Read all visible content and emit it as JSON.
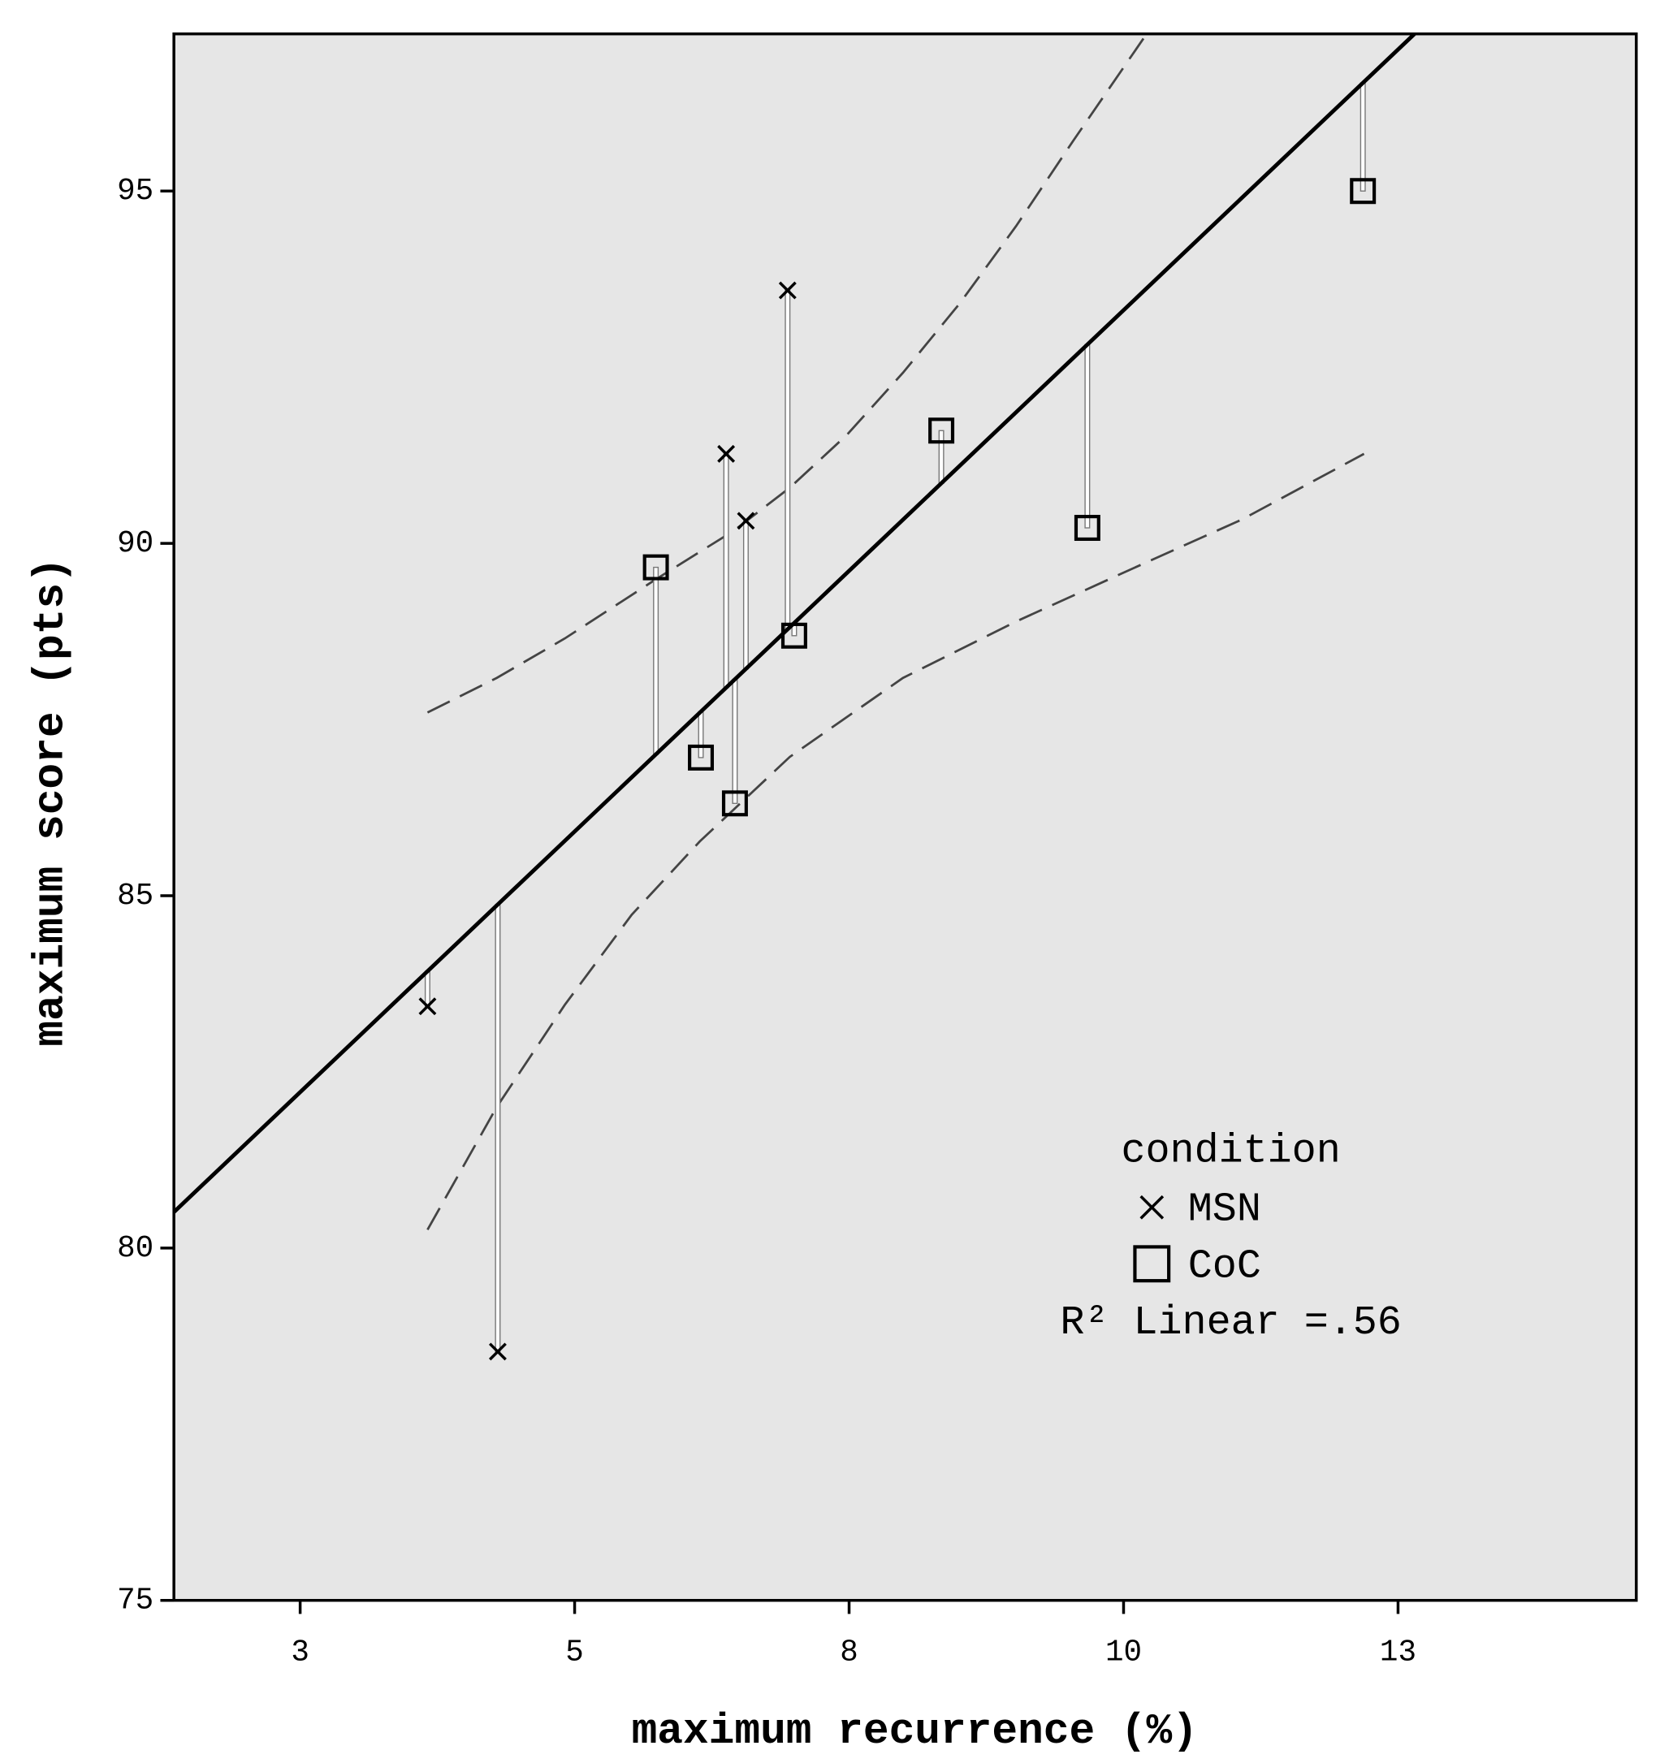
{
  "chart_data": {
    "type": "scatter",
    "x_label": "maximum recurrence (%)",
    "y_label": "maximum score (pts)",
    "xlim": [
      1.35,
      14.67
    ],
    "ylim": [
      75,
      97.23
    ],
    "xticks": [
      {
        "value": 2.5,
        "label": "3"
      },
      5,
      {
        "value": 7.5,
        "label": "8"
      },
      10,
      {
        "value": 12.5,
        "label": "13"
      }
    ],
    "yticks": [
      75,
      80,
      85,
      90,
      95
    ],
    "background": "#e6e6e6",
    "legend_title": "condition",
    "legend_position": "lower right",
    "series": [
      {
        "name": "MSN",
        "marker": "x",
        "color": "#000000",
        "x": [
          3.66,
          4.3,
          6.38,
          6.56,
          6.94
        ],
        "values": [
          83.43,
          78.53,
          91.27,
          90.32,
          93.59
        ]
      },
      {
        "name": "CoC",
        "marker": "square",
        "color": "#000000",
        "x": [
          5.74,
          6.15,
          6.46,
          7.0,
          8.34,
          9.67,
          12.18
        ],
        "values": [
          89.66,
          86.96,
          86.31,
          88.69,
          91.6,
          90.22,
          95.0
        ]
      }
    ],
    "fit": {
      "label": "R² Linear =.56",
      "x": [
        1.35,
        12.65
      ],
      "values": [
        80.51,
        97.23
      ]
    },
    "bands": [
      {
        "x": [
          3.66,
          4.29,
          4.91,
          5.74,
          6.45,
          6.96,
          7.48,
          7.99,
          8.51,
          9.02,
          9.54,
          10.21
        ],
        "values": [
          87.6,
          88.09,
          88.65,
          89.49,
          90.18,
          90.79,
          91.54,
          92.42,
          93.41,
          94.5,
          95.71,
          97.23
        ]
      },
      {
        "x": [
          3.66,
          4.29,
          4.91,
          5.52,
          6.14,
          6.96,
          7.99,
          9.02,
          10.05,
          11.08,
          12.19
        ],
        "values": [
          80.26,
          82.0,
          83.45,
          84.73,
          85.77,
          86.97,
          88.09,
          88.89,
          89.62,
          90.34,
          91.27
        ]
      }
    ]
  }
}
